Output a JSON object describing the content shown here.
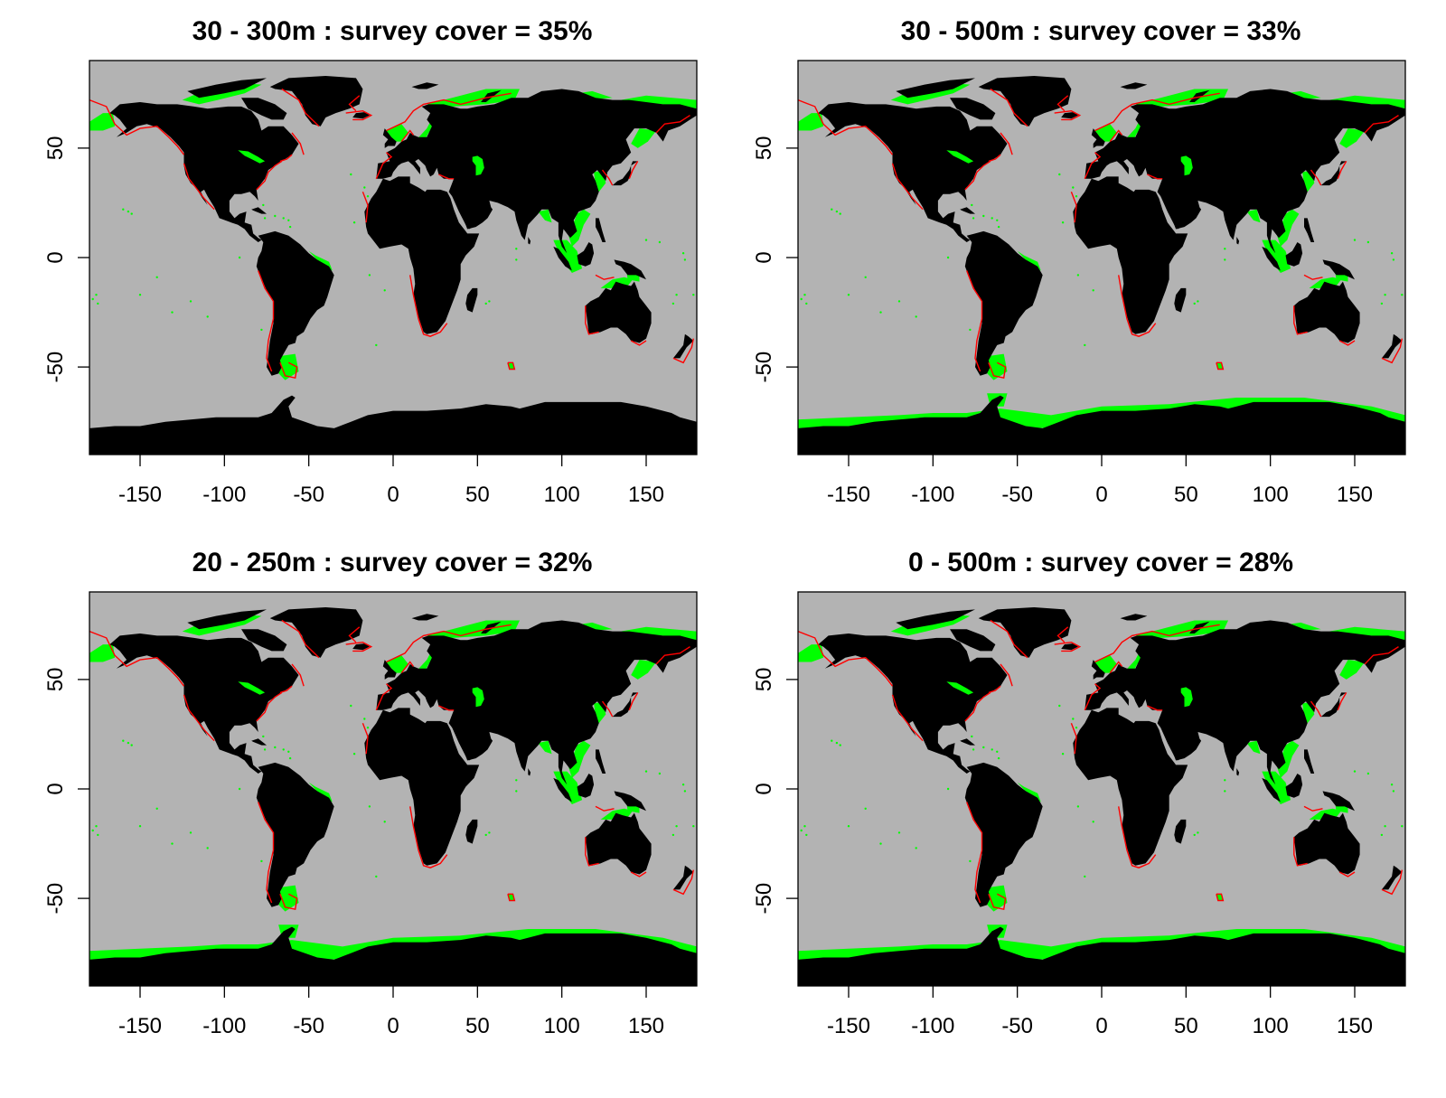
{
  "colors": {
    "ocean": "#b3b3b3",
    "land": "#000000",
    "survey": "#00ff00",
    "outline": "#ff0000"
  },
  "axes": {
    "x_ticks": [
      -150,
      -100,
      -50,
      0,
      50,
      100,
      150
    ],
    "x_tick_labels": [
      "-150",
      "-100",
      "-50",
      "0",
      "50",
      "100",
      "150"
    ],
    "y_ticks": [
      50,
      0,
      -50
    ],
    "y_tick_labels": [
      "50",
      "0",
      "-50"
    ],
    "xlim": [
      -180,
      180
    ],
    "ylim": [
      -90,
      90
    ]
  },
  "panels": [
    {
      "title": "30 - 300m : survey cover = 35%",
      "depth_range_m": [
        30,
        300
      ],
      "survey_cover_pct": 35
    },
    {
      "title": "30 - 500m : survey cover = 33%",
      "depth_range_m": [
        30,
        500
      ],
      "survey_cover_pct": 33
    },
    {
      "title": "20 - 250m : survey cover = 32%",
      "depth_range_m": [
        20,
        250
      ],
      "survey_cover_pct": 32
    },
    {
      "title": "0 - 500m : survey cover = 28%",
      "depth_range_m": [
        0,
        500
      ],
      "survey_cover_pct": 28
    }
  ]
}
